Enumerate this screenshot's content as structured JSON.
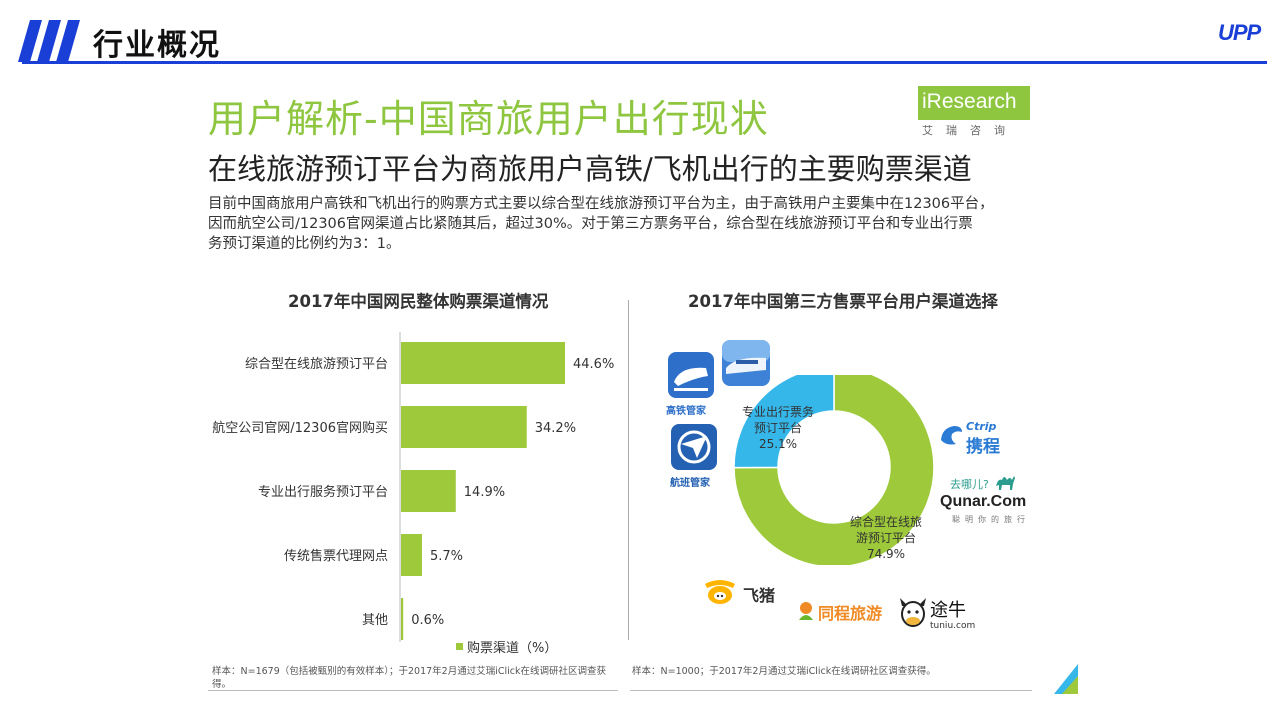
{
  "header": {
    "section_title": "行业概况",
    "brand": "UPP"
  },
  "slide": {
    "title": "用户解析-中国商旅用户出行现状",
    "subtitle": "在线旅游预订平台为商旅用户高铁/飞机出行的主要购票渠道",
    "intro_lines": [
      "目前中国商旅用户高铁和飞机出行的购票方式主要以综合型在线旅游预订平台为主，由于高铁用户主要集中在12306平台，",
      "因而航空公司/12306官网渠道占比紧随其后，超过30%。对于第三方票务平台，综合型在线旅游预订平台和专业出行票",
      "务预订渠道的比例约为3：1。"
    ],
    "logo": {
      "word": "iResearch",
      "sub": "艾瑞咨询"
    }
  },
  "colors": {
    "green": "#9dc93a",
    "blue": "#36b7ea",
    "title_green": "#8ec63f",
    "accent_blue": "#1a3fd6"
  },
  "chart_data": [
    {
      "type": "bar",
      "orientation": "horizontal",
      "title": "2017年中国网民整体购票渠道情况",
      "categories": [
        "综合型在线旅游预订平台",
        "航空公司官网/12306官网购买",
        "专业出行服务预订平台",
        "传统售票代理网点",
        "其他"
      ],
      "values": [
        44.6,
        34.2,
        14.9,
        5.7,
        0.6
      ],
      "value_labels": [
        "44.6%",
        "34.2%",
        "14.9%",
        "5.7%",
        "0.6%"
      ],
      "legend": "购票渠道（%）",
      "xlim": [
        0,
        50
      ],
      "note": "样本：N=1679（包括被甄别的有效样本）；于2017年2月通过艾瑞iClick在线调研社区调查获得。"
    },
    {
      "type": "pie",
      "variant": "donut",
      "title": "2017年中国第三方售票平台用户渠道选择",
      "slices": [
        {
          "label": "综合型在线旅游预订平台",
          "value": 74.9,
          "value_label": "74.9%"
        },
        {
          "label": "专业出行票务预订平台",
          "value": 25.1,
          "value_label": "25.1%"
        }
      ],
      "note": "样本：N=1000；于2017年2月通过艾瑞iClick在线调研社区调查获得。"
    }
  ],
  "donut_labels": {
    "green": [
      "综合型在线旅",
      "游预订平台"
    ],
    "blue": [
      "专业出行票务",
      "预订平台"
    ]
  },
  "app_icons": [
    {
      "icon": "train-icon",
      "label": "高铁管家"
    },
    {
      "icon": "train-photo-icon",
      "label": ""
    },
    {
      "icon": "plane-icon",
      "label": "航班管家"
    }
  ],
  "brand_logos": {
    "ctrip": {
      "en": "Ctrip",
      "cn": "携程"
    },
    "qunar": {
      "slogan": "去哪儿?",
      "en": "Qunar.Com",
      "sub": "聪明你的旅行"
    },
    "fliggy": {
      "cn": "飞猪"
    },
    "tongcheng": {
      "cn": "同程旅游"
    },
    "tuniu": {
      "cn": "途牛",
      "en": "tuniu.com"
    }
  }
}
